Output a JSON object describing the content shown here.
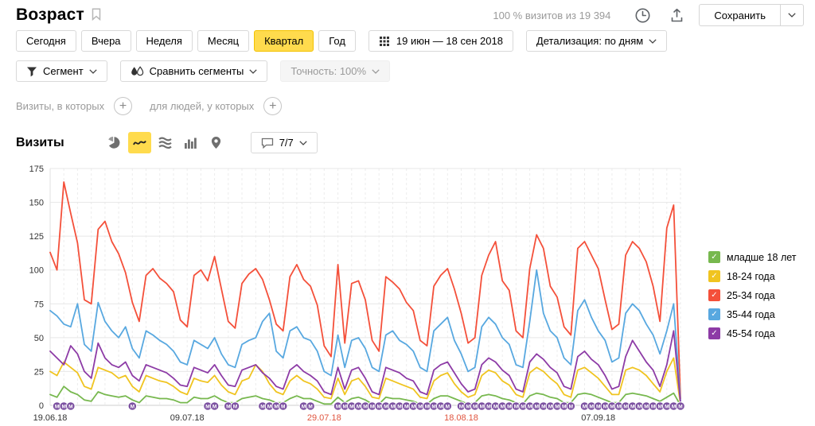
{
  "header": {
    "title": "Возраст",
    "visits_summary": "100 % визитов из 19 394",
    "save_label": "Сохранить"
  },
  "toolbar": {
    "periods": [
      {
        "label": "Сегодня",
        "active": false
      },
      {
        "label": "Вчера",
        "active": false
      },
      {
        "label": "Неделя",
        "active": false
      },
      {
        "label": "Месяц",
        "active": false
      },
      {
        "label": "Квартал",
        "active": true
      },
      {
        "label": "Год",
        "active": false
      }
    ],
    "date_range": "19 июн — 18 сен 2018",
    "detalization": "Детализация: по дням",
    "segment": "Сегмент",
    "compare_segments": "Сравнить сегменты",
    "accuracy": "Точность: 100%"
  },
  "filters": {
    "visits_label": "Визиты, в которых",
    "people_label": "для людей, у которых"
  },
  "chart_header": {
    "title": "Визиты",
    "comments": "7/7"
  },
  "chart_data": {
    "type": "line",
    "title": "Визиты",
    "xlabel": "",
    "ylabel": "",
    "ylim": [
      0,
      175
    ],
    "y_ticks": [
      0,
      25,
      50,
      75,
      100,
      125,
      150,
      175
    ],
    "grid": true,
    "legend_position": "right",
    "x_tick_labels": [
      {
        "label": "19.06.18",
        "day": 0,
        "color": "#333333"
      },
      {
        "label": "09.07.18",
        "day": 20,
        "color": "#333333"
      },
      {
        "label": "29.07.18",
        "day": 40,
        "color": "#e0543e"
      },
      {
        "label": "18.08.18",
        "day": 60,
        "color": "#e0543e"
      },
      {
        "label": "07.09.18",
        "day": 80,
        "color": "#333333"
      }
    ],
    "series": [
      {
        "name": "младше 18 лет",
        "color": "#77b84e",
        "values": [
          8,
          6,
          14,
          10,
          8,
          4,
          3,
          10,
          8,
          7,
          6,
          7,
          4,
          2,
          7,
          6,
          5,
          5,
          4,
          2,
          2,
          6,
          5,
          5,
          7,
          4,
          2,
          2,
          5,
          6,
          7,
          5,
          4,
          2,
          2,
          5,
          7,
          5,
          5,
          3,
          1,
          1,
          6,
          2,
          5,
          6,
          4,
          1,
          1,
          6,
          5,
          5,
          4,
          3,
          1,
          1,
          5,
          7,
          7,
          5,
          3,
          1,
          2,
          7,
          8,
          7,
          5,
          4,
          2,
          1,
          7,
          9,
          8,
          6,
          5,
          2,
          2,
          8,
          9,
          8,
          6,
          4,
          2,
          2,
          8,
          9,
          8,
          7,
          5,
          3,
          6,
          9,
          0
        ]
      },
      {
        "name": "18-24 года",
        "color": "#f0c420",
        "values": [
          25,
          22,
          32,
          28,
          24,
          14,
          12,
          28,
          26,
          24,
          20,
          22,
          14,
          10,
          22,
          20,
          18,
          17,
          14,
          10,
          8,
          20,
          18,
          17,
          22,
          15,
          10,
          8,
          18,
          20,
          30,
          25,
          16,
          10,
          8,
          18,
          22,
          18,
          16,
          12,
          6,
          5,
          20,
          8,
          18,
          20,
          14,
          6,
          5,
          20,
          18,
          16,
          14,
          12,
          6,
          5,
          18,
          22,
          24,
          16,
          10,
          6,
          8,
          22,
          26,
          24,
          18,
          15,
          8,
          6,
          24,
          28,
          25,
          20,
          16,
          8,
          6,
          26,
          28,
          24,
          20,
          14,
          8,
          8,
          26,
          28,
          26,
          22,
          16,
          10,
          25,
          35,
          1
        ]
      },
      {
        "name": "25-34 года",
        "color": "#f4503a",
        "values": [
          113,
          100,
          165,
          142,
          120,
          78,
          75,
          130,
          136,
          121,
          112,
          98,
          76,
          62,
          96,
          101,
          94,
          90,
          84,
          63,
          58,
          96,
          100,
          92,
          110,
          86,
          62,
          57,
          90,
          97,
          101,
          93,
          78,
          60,
          55,
          95,
          104,
          93,
          88,
          74,
          44,
          36,
          104,
          46,
          90,
          92,
          78,
          48,
          40,
          95,
          91,
          86,
          76,
          70,
          48,
          44,
          88,
          96,
          101,
          86,
          68,
          46,
          50,
          96,
          111,
          121,
          92,
          85,
          55,
          50,
          101,
          126,
          116,
          88,
          80,
          58,
          52,
          116,
          121,
          111,
          101,
          78,
          56,
          60,
          111,
          121,
          116,
          106,
          88,
          62,
          131,
          148,
          5
        ]
      },
      {
        "name": "35-44 года",
        "color": "#58a8e0",
        "values": [
          70,
          66,
          60,
          58,
          75,
          45,
          40,
          76,
          62,
          55,
          50,
          58,
          42,
          35,
          55,
          52,
          48,
          45,
          40,
          32,
          30,
          48,
          45,
          42,
          50,
          38,
          30,
          28,
          45,
          48,
          50,
          62,
          68,
          40,
          35,
          55,
          58,
          50,
          48,
          40,
          25,
          22,
          52,
          28,
          48,
          50,
          42,
          28,
          25,
          52,
          55,
          48,
          45,
          40,
          28,
          25,
          55,
          60,
          65,
          48,
          38,
          25,
          28,
          58,
          65,
          60,
          50,
          45,
          30,
          28,
          62,
          100,
          68,
          55,
          50,
          35,
          30,
          70,
          78,
          65,
          55,
          48,
          32,
          35,
          68,
          75,
          70,
          60,
          52,
          38,
          55,
          75,
          3
        ]
      },
      {
        "name": "45-54 года",
        "color": "#8d3ba6",
        "values": [
          40,
          35,
          30,
          44,
          38,
          25,
          20,
          46,
          35,
          30,
          28,
          32,
          22,
          18,
          30,
          28,
          26,
          24,
          20,
          15,
          14,
          28,
          26,
          24,
          30,
          22,
          15,
          14,
          26,
          28,
          30,
          24,
          20,
          14,
          12,
          26,
          30,
          25,
          22,
          18,
          10,
          8,
          28,
          12,
          26,
          28,
          20,
          10,
          8,
          28,
          26,
          24,
          20,
          18,
          10,
          8,
          26,
          30,
          32,
          24,
          16,
          10,
          12,
          30,
          35,
          32,
          26,
          22,
          12,
          10,
          32,
          38,
          34,
          28,
          24,
          14,
          12,
          36,
          40,
          34,
          30,
          22,
          12,
          14,
          36,
          48,
          40,
          32,
          26,
          14,
          30,
          55,
          2
        ]
      }
    ],
    "annotation_marker": {
      "glyph": "М",
      "color": "#7c51a1",
      "days": [
        1,
        2,
        3,
        12,
        23,
        24,
        26,
        27,
        31,
        32,
        33,
        34,
        37,
        38,
        42,
        43,
        44,
        45,
        46,
        47,
        48,
        49,
        50,
        51,
        52,
        53,
        54,
        55,
        56,
        57,
        58,
        60,
        61,
        62,
        63,
        64,
        65,
        66,
        67,
        68,
        69,
        70,
        71,
        72,
        73,
        74,
        75,
        76,
        78,
        79,
        80,
        81,
        82,
        83,
        84,
        85,
        86,
        87,
        88,
        89,
        90,
        91,
        92
      ]
    }
  }
}
